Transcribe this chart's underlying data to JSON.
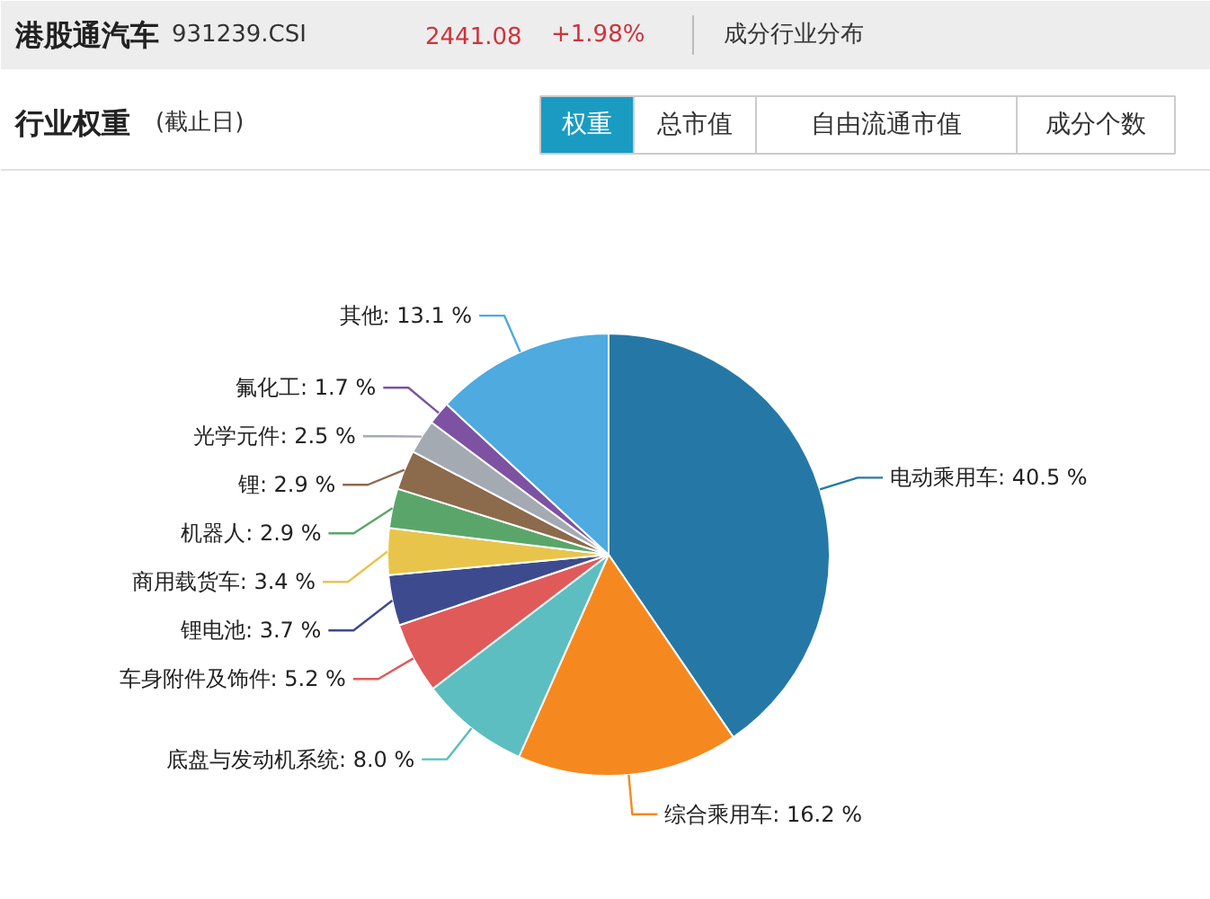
{
  "chart_data": {
    "type": "pie",
    "title": "港股通汽车",
    "annotations": [
      "931239.CSI",
      "2441.08",
      "+1.98%",
      "成分行业分布",
      "行业权重",
      "(截止日)",
      "权重",
      "总市值",
      "自由流通市值",
      "成分个数"
    ],
    "categories": [
      "电动乘用车",
      "综合乘用车",
      "底盘与发动机系统",
      "车身附件及饰件",
      "锂电池",
      "商用载货车",
      "机器人",
      "锂",
      "光学元件",
      "氟化工",
      "其他"
    ],
    "values": [
      40.5,
      16.2,
      8.0,
      5.2,
      3.7,
      3.4,
      2.9,
      2.9,
      2.5,
      1.7,
      13.1
    ],
    "value_labels": [
      "40.5 %",
      "16.2 %",
      "8.0 %",
      "5.2 %",
      "3.7 %",
      "3.4 %",
      "2.9 %",
      "2.9 %",
      "2.5 %",
      "1.7 %",
      "13.1 %"
    ],
    "colors": [
      "#2578a6",
      "#f5891f",
      "#5cbec0",
      "#e05a5a",
      "#3d4b8e",
      "#e8c54a",
      "#5aa66a",
      "#8c6a4c",
      "#a3aab2",
      "#7d52a2",
      "#4eaadf"
    ]
  }
}
